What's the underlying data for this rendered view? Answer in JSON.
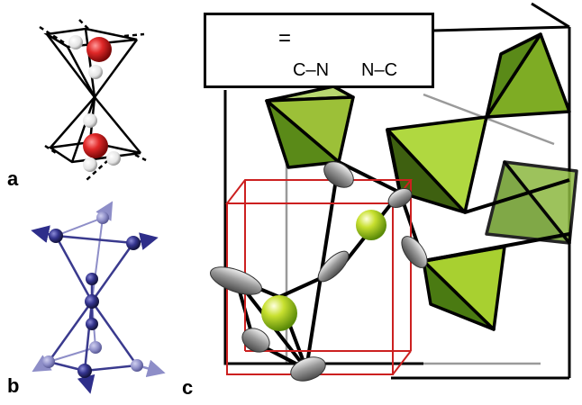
{
  "panels": {
    "a": {
      "label": "a"
    },
    "b": {
      "label": "b"
    },
    "c": {
      "label": "c"
    }
  },
  "legend": {
    "equals": "=",
    "left_bracket": "⟨",
    "separator": ",",
    "right_bracket": "⟩",
    "cn_label": "C–N",
    "nc_label": "N–C"
  },
  "colors": {
    "oxygen": "#d42020",
    "hydrogen": "#f2f2f2",
    "arrow_atom": "#2e2e8a",
    "tetrahedron": "#8fbf2a",
    "tetrahedron_dark": "#4f7a12",
    "cyanide": "#8a8a8a",
    "cation": "#a8d42a",
    "unit_cell": "#cc2020"
  }
}
